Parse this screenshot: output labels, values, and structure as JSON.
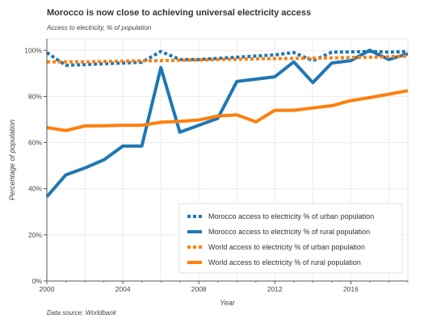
{
  "chart_data": {
    "type": "line",
    "title": "Morocco is now close to achieving universal electricity access",
    "subtitle": "Access to electricity, % of population",
    "xlabel": "Year",
    "ylabel": "Percentage of population",
    "source": "Data source: Worldbank",
    "xlim": [
      2000,
      2019
    ],
    "ylim": [
      0,
      105
    ],
    "x_ticks": [
      2000,
      2004,
      2008,
      2012,
      2016
    ],
    "y_ticks": [
      0,
      20,
      40,
      60,
      80,
      100
    ],
    "y_tick_labels": [
      "0%",
      "20%",
      "40%",
      "60%",
      "80%",
      "100%"
    ],
    "grid": true,
    "legend_position": "bottom-right",
    "x": [
      2000,
      2001,
      2002,
      2003,
      2004,
      2005,
      2006,
      2007,
      2008,
      2009,
      2010,
      2011,
      2012,
      2013,
      2014,
      2015,
      2016,
      2017,
      2018,
      2019
    ],
    "series": [
      {
        "name": "Morocco access to electricity % of urban population",
        "color": "#1f77b4",
        "style": "dotted",
        "values": [
          99,
          93.5,
          93.8,
          94.2,
          94.5,
          94.8,
          99.5,
          96,
          96,
          96.5,
          97,
          97.5,
          98,
          99,
          95.5,
          99.2,
          99.3,
          99.5,
          99.2,
          99.5
        ]
      },
      {
        "name": "Morocco access to electricity % of rural population",
        "color": "#1f77b4",
        "style": "solid",
        "values": [
          36.5,
          46,
          49,
          52.5,
          58.5,
          58.5,
          92.5,
          64.5,
          67.5,
          70.5,
          86.5,
          87.5,
          88.5,
          95,
          86,
          94.5,
          95.5,
          100,
          96,
          98.5
        ]
      },
      {
        "name": "World access to electricity % of urban population",
        "color": "#ff7f0e",
        "style": "dotted",
        "values": [
          95,
          95,
          95,
          95.2,
          95.3,
          95.4,
          95.5,
          95.7,
          95.8,
          96,
          96.1,
          96.3,
          96.4,
          96.5,
          96.6,
          96.7,
          96.9,
          97,
          97.2,
          97.5
        ]
      },
      {
        "name": "World access to electricity % of rural population",
        "color": "#ff7f0e",
        "style": "solid",
        "values": [
          66.5,
          65.2,
          67.2,
          67.3,
          67.5,
          67.5,
          68.8,
          69.2,
          69.8,
          71.5,
          72,
          69,
          74,
          74,
          75,
          76,
          78.2,
          79.5,
          81,
          82.5
        ]
      }
    ]
  }
}
